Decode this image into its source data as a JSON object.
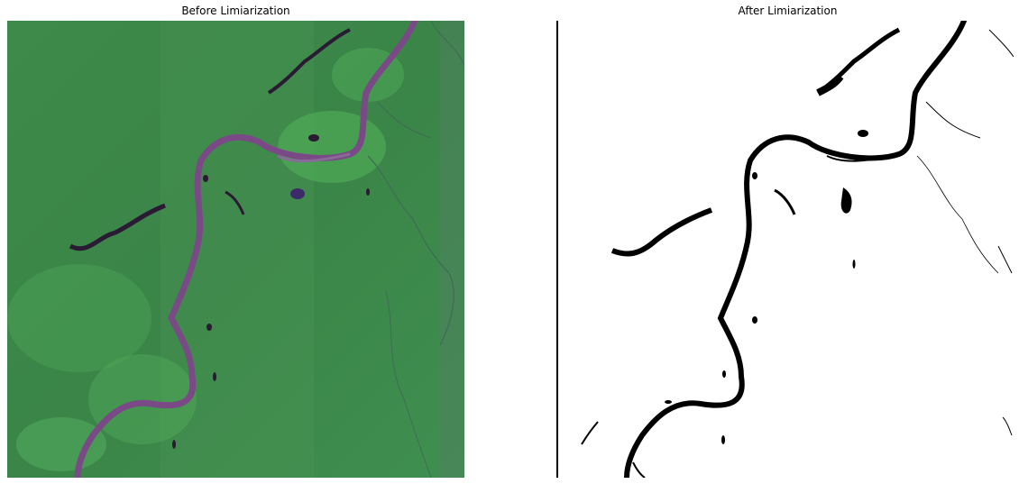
{
  "figure": {
    "left_panel": {
      "title": "Before Limiarization"
    },
    "right_panel": {
      "title": "After Limiarization"
    }
  },
  "colors": {
    "background": "#ffffff",
    "satellite_green": "#3e8a4c",
    "river_purple": "#7a4a86",
    "water_dark": "#2a1a34",
    "binary_water": "#000000",
    "binary_land": "#ffffff"
  }
}
